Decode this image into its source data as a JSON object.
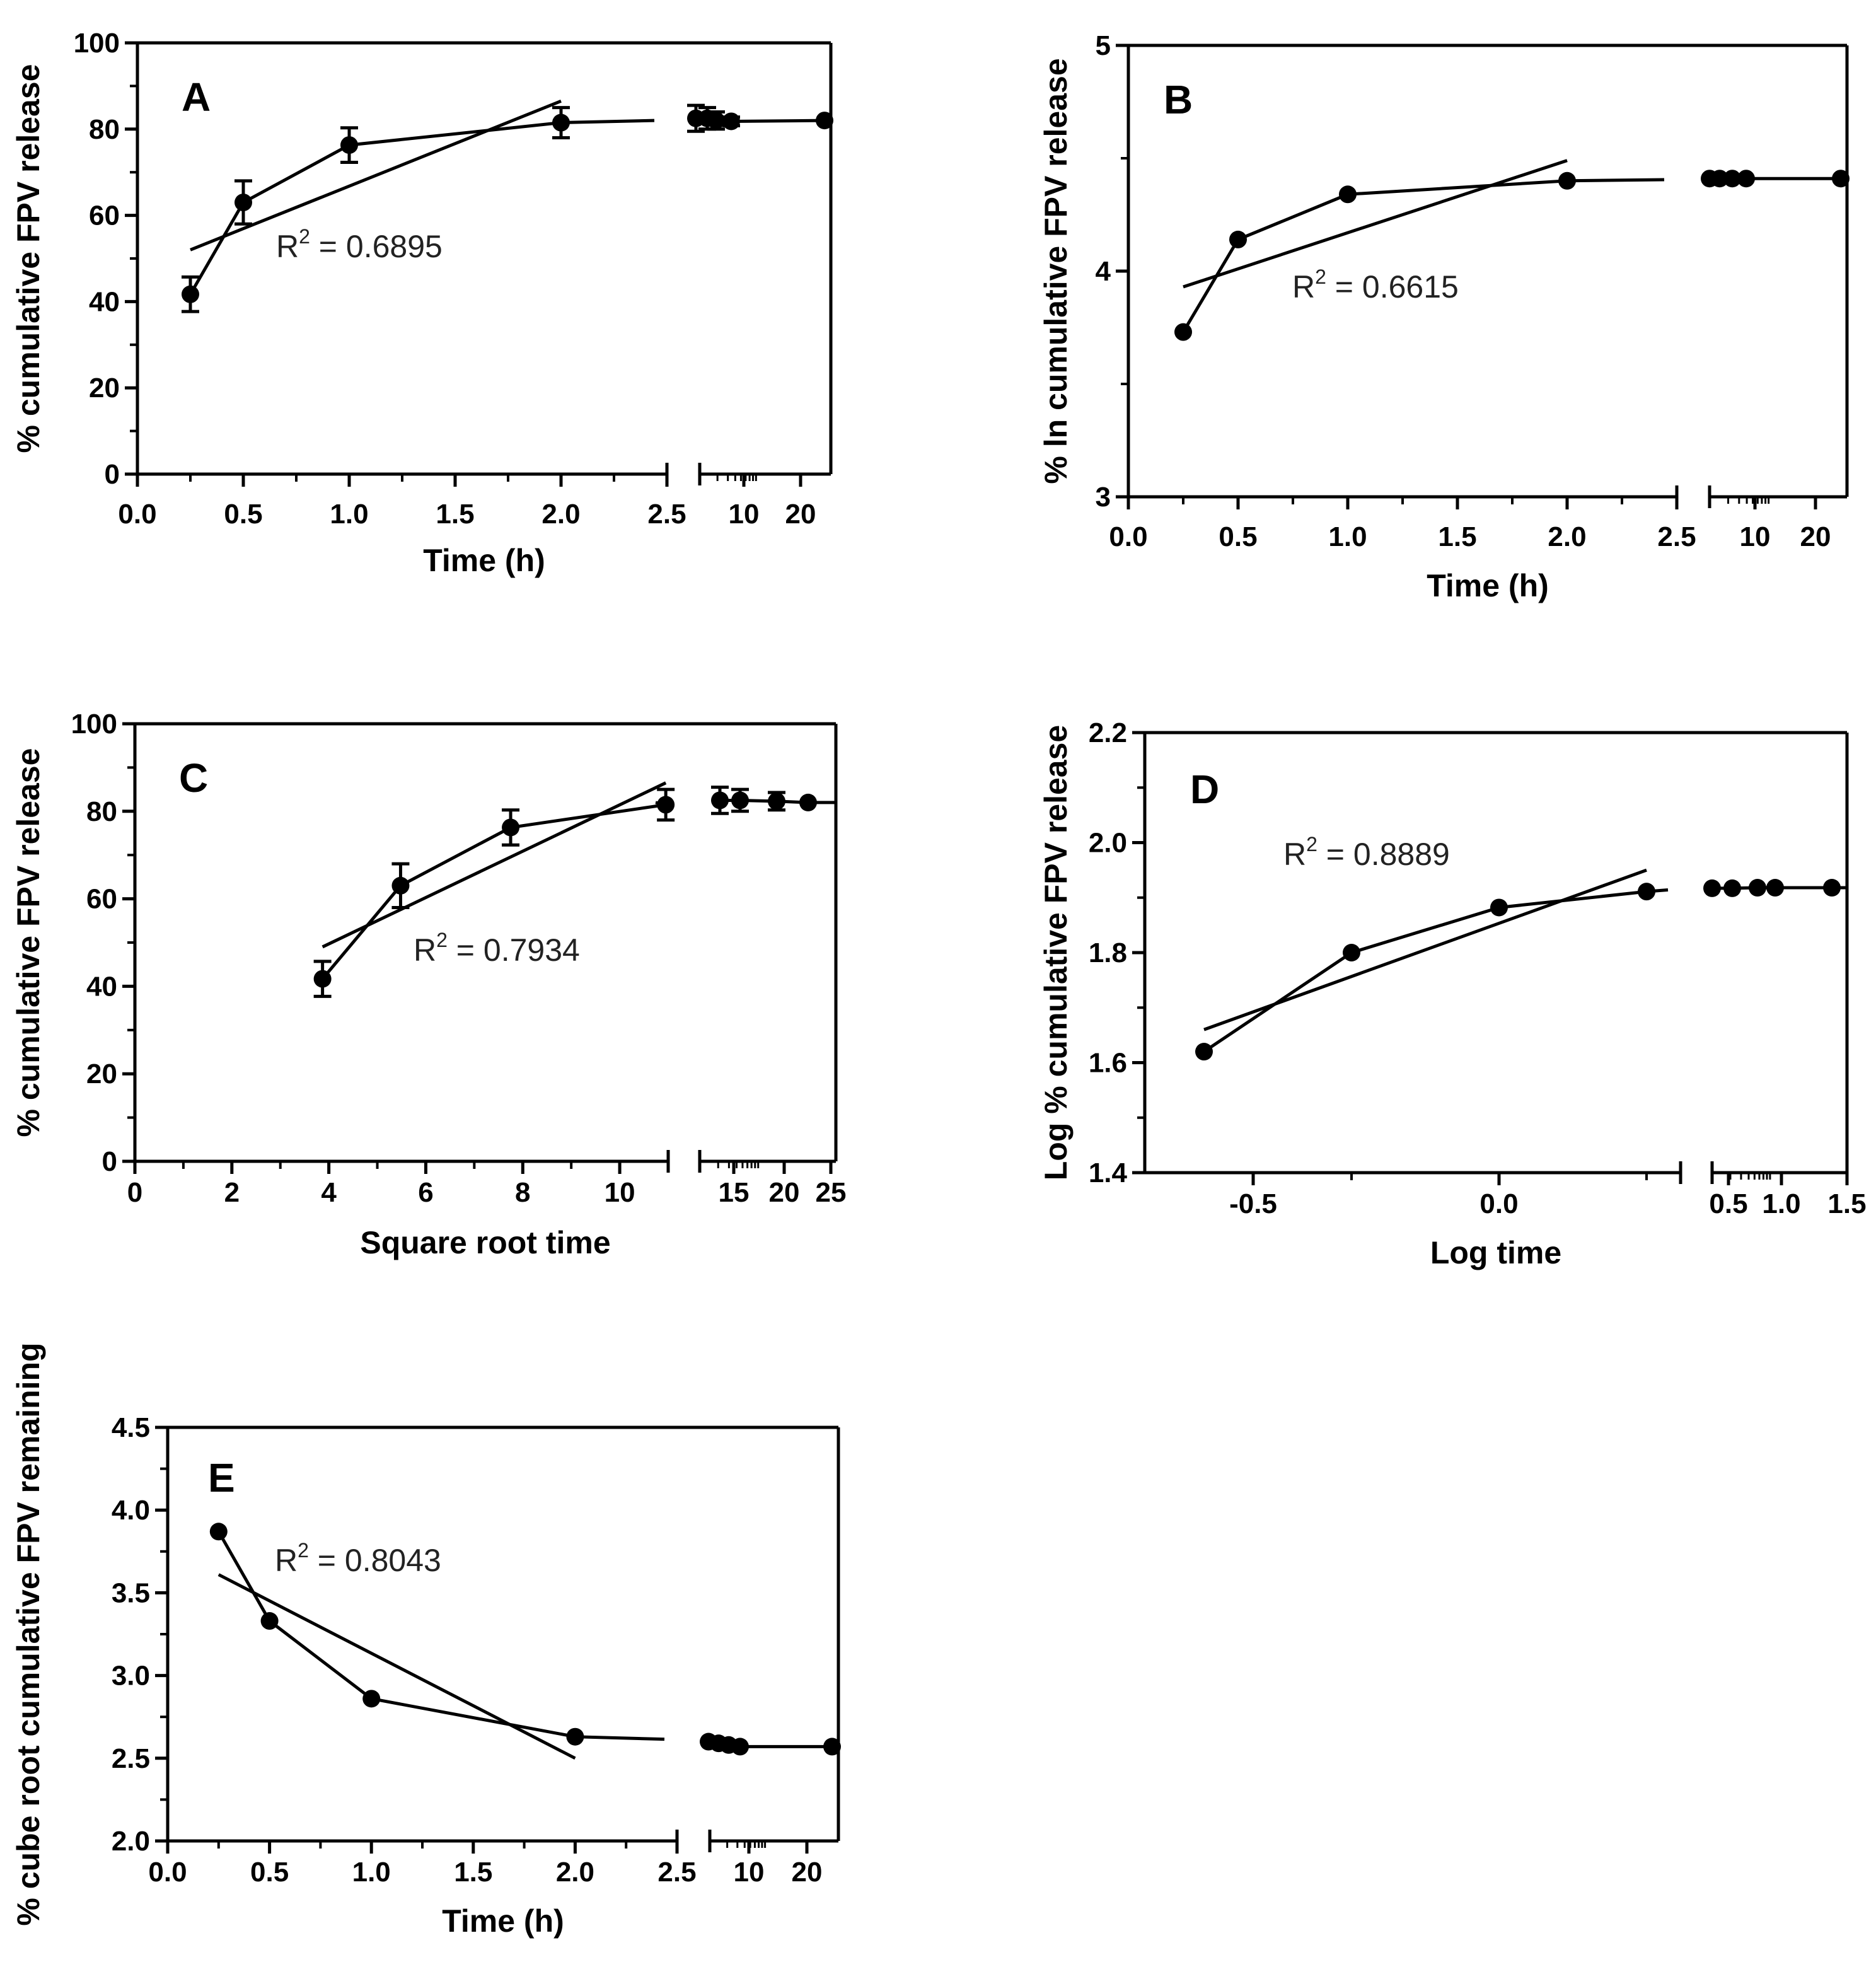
{
  "chart_data": [
    {
      "id": "A",
      "type": "line",
      "panel_label": "A",
      "ylabel": "% cumulative FPV release",
      "xlabel": "Time (h)",
      "ylim": [
        0,
        100
      ],
      "yticks": [
        "0",
        "20",
        "40",
        "60",
        "80",
        "100"
      ],
      "x_segment1_range": [
        0,
        2.5
      ],
      "x_segment1_ticks": [
        "0.0",
        "0.5",
        "1.0",
        "1.5",
        "2.0",
        "2.5"
      ],
      "x_segment2_ticks": [
        "10",
        "20"
      ],
      "r2_prefix": "R",
      "r2_sup": "2",
      "r2_value": " = 0.6895",
      "series": [
        {
          "name": "data",
          "points": [
            {
              "x": 0.25,
              "y": 41.7,
              "err": 4
            },
            {
              "x": 0.5,
              "y": 63.0,
              "err": 5
            },
            {
              "x": 1.0,
              "y": 76.3,
              "err": 4
            },
            {
              "x": 2.0,
              "y": 81.5,
              "err": 3.5
            }
          ]
        },
        {
          "name": "data-late",
          "points": [
            {
              "x": 4,
              "y": 82.5,
              "err": 3
            },
            {
              "x": 5,
              "y": 82.5,
              "err": 2.5
            },
            {
              "x": 6,
              "y": 82.0,
              "err": 2
            },
            {
              "x": 8,
              "y": 81.8,
              "err": 1
            },
            {
              "x": 24,
              "y": 82.0,
              "err": 0
            }
          ]
        }
      ],
      "fit": [
        {
          "x": 0.25,
          "y": 52
        },
        {
          "x": 2.0,
          "y": 86.5
        }
      ]
    },
    {
      "id": "B",
      "type": "line",
      "panel_label": "B",
      "ylabel": "% ln cumulative FPV release",
      "xlabel": "Time (h)",
      "ylim": [
        3,
        5
      ],
      "yticks": [
        "3",
        "4",
        "5"
      ],
      "x_segment1_range": [
        0,
        2.5
      ],
      "x_segment1_ticks": [
        "0.0",
        "0.5",
        "1.0",
        "1.5",
        "2.0",
        "2.5"
      ],
      "x_segment2_ticks": [
        "10",
        "20"
      ],
      "r2_prefix": "R",
      "r2_sup": "2",
      "r2_value": " = 0.6615",
      "series": [
        {
          "name": "data",
          "points": [
            {
              "x": 0.25,
              "y": 3.73,
              "err": 0
            },
            {
              "x": 0.5,
              "y": 4.14,
              "err": 0
            },
            {
              "x": 1.0,
              "y": 4.34,
              "err": 0
            },
            {
              "x": 2.0,
              "y": 4.4,
              "err": 0
            }
          ]
        },
        {
          "name": "data-late",
          "points": [
            {
              "x": 4,
              "y": 4.41,
              "err": 0
            },
            {
              "x": 5,
              "y": 4.41,
              "err": 0
            },
            {
              "x": 6,
              "y": 4.41,
              "err": 0
            },
            {
              "x": 8,
              "y": 4.41,
              "err": 0
            },
            {
              "x": 24,
              "y": 4.41,
              "err": 0
            }
          ]
        }
      ],
      "fit": [
        {
          "x": 0.25,
          "y": 3.93
        },
        {
          "x": 2.0,
          "y": 4.49
        }
      ]
    },
    {
      "id": "C",
      "type": "line",
      "panel_label": "C",
      "ylabel": "% cumulative FPV release",
      "xlabel": "Square root time",
      "ylim": [
        0,
        100
      ],
      "yticks": [
        "0",
        "20",
        "40",
        "60",
        "80",
        "100"
      ],
      "x_segment1_range": [
        0,
        11
      ],
      "x_segment1_ticks": [
        "0",
        "2",
        "4",
        "6",
        "8",
        "10"
      ],
      "x_segment2_ticks": [
        "15",
        "20",
        "25"
      ],
      "r2_prefix": "R",
      "r2_sup": "2",
      "r2_value": " = 0.7934",
      "series": [
        {
          "name": "data",
          "points": [
            {
              "x": 3.87,
              "y": 41.7,
              "err": 4
            },
            {
              "x": 5.48,
              "y": 63.0,
              "err": 5
            },
            {
              "x": 7.75,
              "y": 76.3,
              "err": 4
            },
            {
              "x": 10.95,
              "y": 81.5,
              "err": 3.5
            }
          ]
        },
        {
          "name": "data-late",
          "points": [
            {
              "x": 13.4,
              "y": 82.5,
              "err": 3
            },
            {
              "x": 15.5,
              "y": 82.5,
              "err": 2.5
            },
            {
              "x": 19.0,
              "y": 82.3,
              "err": 2
            },
            {
              "x": 22.0,
              "y": 82.0,
              "err": 0
            }
          ]
        }
      ],
      "fit": [
        {
          "x": 3.87,
          "y": 49
        },
        {
          "x": 10.95,
          "y": 86.5
        }
      ]
    },
    {
      "id": "D",
      "type": "line",
      "panel_label": "D",
      "ylabel": "Log % cumulative FPV release",
      "xlabel": "Log time",
      "ylim": [
        1.4,
        2.2
      ],
      "yticks": [
        "1.4",
        "1.6",
        "1.8",
        "2.0",
        "2.2"
      ],
      "x_segment1_range": [
        -0.7,
        0.4
      ],
      "x_segment1_ticks": [
        "-0.5",
        "0.0"
      ],
      "x_segment2_ticks": [
        "0.5",
        "1.0",
        "1.5"
      ],
      "r2_prefix": "R",
      "r2_sup": "2",
      "r2_value": " = 0.8889",
      "series": [
        {
          "name": "data",
          "points": [
            {
              "x": -0.6,
              "y": 1.62,
              "err": 0
            },
            {
              "x": -0.3,
              "y": 1.8,
              "err": 0
            },
            {
              "x": 0.0,
              "y": 1.882,
              "err": 0
            },
            {
              "x": 0.3,
              "y": 1.911,
              "err": 0
            }
          ]
        },
        {
          "name": "data-late",
          "points": [
            {
              "x": 0.6,
              "y": 1.917,
              "err": 0
            },
            {
              "x": 0.7,
              "y": 1.917,
              "err": 0
            },
            {
              "x": 0.78,
              "y": 1.918,
              "err": 0
            },
            {
              "x": 0.9,
              "y": 1.918,
              "err": 0
            },
            {
              "x": 1.38,
              "y": 1.918,
              "err": 0
            }
          ]
        }
      ],
      "fit": [
        {
          "x": -0.6,
          "y": 1.66
        },
        {
          "x": 0.3,
          "y": 1.95
        }
      ]
    },
    {
      "id": "E",
      "type": "line",
      "panel_label": "E",
      "ylabel": "% cube root cumulative FPV remaining",
      "xlabel": "Time (h)",
      "ylim": [
        2.0,
        4.5
      ],
      "yticks": [
        "2.0",
        "2.5",
        "3.0",
        "3.5",
        "4.0",
        "4.5"
      ],
      "x_segment1_range": [
        0,
        2.5
      ],
      "x_segment1_ticks": [
        "0.0",
        "0.5",
        "1.0",
        "1.5",
        "2.0",
        "2.5"
      ],
      "x_segment2_ticks": [
        "10",
        "20"
      ],
      "r2_prefix": "R",
      "r2_sup": "2",
      "r2_value": " = 0.8043",
      "series": [
        {
          "name": "data",
          "points": [
            {
              "x": 0.25,
              "y": 3.87,
              "err": 0
            },
            {
              "x": 0.5,
              "y": 3.33,
              "err": 0
            },
            {
              "x": 1.0,
              "y": 2.86,
              "err": 0
            },
            {
              "x": 2.0,
              "y": 2.63,
              "err": 0
            }
          ]
        },
        {
          "name": "data-late",
          "points": [
            {
              "x": 4,
              "y": 2.6,
              "err": 0
            },
            {
              "x": 5,
              "y": 2.59,
              "err": 0
            },
            {
              "x": 6,
              "y": 2.58,
              "err": 0
            },
            {
              "x": 8,
              "y": 2.57,
              "err": 0
            },
            {
              "x": 24,
              "y": 2.57,
              "err": 0
            }
          ]
        }
      ],
      "fit": [
        {
          "x": 0.25,
          "y": 3.61
        },
        {
          "x": 2.0,
          "y": 2.5
        }
      ]
    }
  ]
}
